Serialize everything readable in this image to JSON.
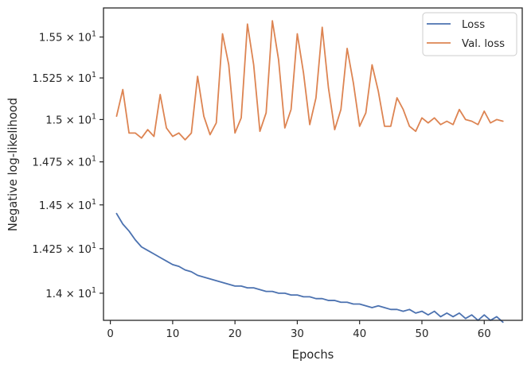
{
  "chart_data": {
    "type": "line",
    "title": "",
    "xlabel": "Epochs",
    "ylabel": "Negative log-likelihood",
    "xlim": [
      -1.1,
      66.1
    ],
    "ylim": [
      13.85,
      15.68
    ],
    "y_scale": "log",
    "grid": false,
    "legend_position": "top-right",
    "x_ticks": [
      0,
      10,
      20,
      30,
      40,
      50,
      60
    ],
    "x_tick_labels": [
      "0",
      "10",
      "20",
      "30",
      "40",
      "50",
      "60"
    ],
    "y_ticks": [
      14.0,
      14.25,
      14.5,
      14.75,
      15.0,
      15.25,
      15.5
    ],
    "y_tick_labels": {
      "mantissas": [
        "1.4",
        "1.425",
        "1.45",
        "1.475",
        "1.5",
        "1.525",
        "1.55"
      ],
      "times": "×",
      "base": "10",
      "exponent": "1"
    },
    "x": [
      1,
      2,
      3,
      4,
      5,
      6,
      7,
      8,
      9,
      10,
      11,
      12,
      13,
      14,
      15,
      16,
      17,
      18,
      19,
      20,
      21,
      22,
      23,
      24,
      25,
      26,
      27,
      28,
      29,
      30,
      31,
      32,
      33,
      34,
      35,
      36,
      37,
      38,
      39,
      40,
      41,
      42,
      43,
      44,
      45,
      46,
      47,
      48,
      49,
      50,
      51,
      52,
      53,
      54,
      55,
      56,
      57,
      58,
      59,
      60,
      61,
      62,
      63
    ],
    "series": [
      {
        "name": "Loss",
        "color": "#4c72b0",
        "values": [
          14.45,
          14.39,
          14.35,
          14.3,
          14.26,
          14.24,
          14.22,
          14.2,
          14.18,
          14.16,
          14.15,
          14.13,
          14.12,
          14.1,
          14.09,
          14.08,
          14.07,
          14.06,
          14.05,
          14.04,
          14.04,
          14.03,
          14.03,
          14.02,
          14.01,
          14.01,
          14.0,
          14.0,
          13.99,
          13.99,
          13.98,
          13.98,
          13.97,
          13.97,
          13.96,
          13.96,
          13.95,
          13.95,
          13.94,
          13.94,
          13.93,
          13.92,
          13.93,
          13.92,
          13.91,
          13.91,
          13.9,
          13.91,
          13.89,
          13.9,
          13.88,
          13.9,
          13.87,
          13.89,
          13.87,
          13.89,
          13.86,
          13.88,
          13.85,
          13.88,
          13.85,
          13.87,
          13.84
        ]
      },
      {
        "name": "Val. loss",
        "color": "#dd8452",
        "values": [
          15.02,
          15.18,
          14.92,
          14.92,
          14.89,
          14.94,
          14.9,
          15.15,
          14.95,
          14.9,
          14.92,
          14.88,
          14.92,
          15.26,
          15.02,
          14.91,
          14.98,
          15.52,
          15.33,
          14.92,
          15.01,
          15.58,
          15.33,
          14.93,
          15.04,
          15.6,
          15.36,
          14.95,
          15.06,
          15.52,
          15.28,
          14.97,
          15.13,
          15.56,
          15.19,
          14.94,
          15.06,
          15.43,
          15.22,
          14.96,
          15.04,
          15.33,
          15.17,
          14.96,
          14.96,
          15.13,
          15.06,
          14.96,
          14.93,
          15.01,
          14.98,
          15.01,
          14.97,
          14.99,
          14.97,
          15.06,
          15.0,
          14.99,
          14.97,
          15.05,
          14.98,
          15.0,
          14.99
        ]
      }
    ]
  }
}
